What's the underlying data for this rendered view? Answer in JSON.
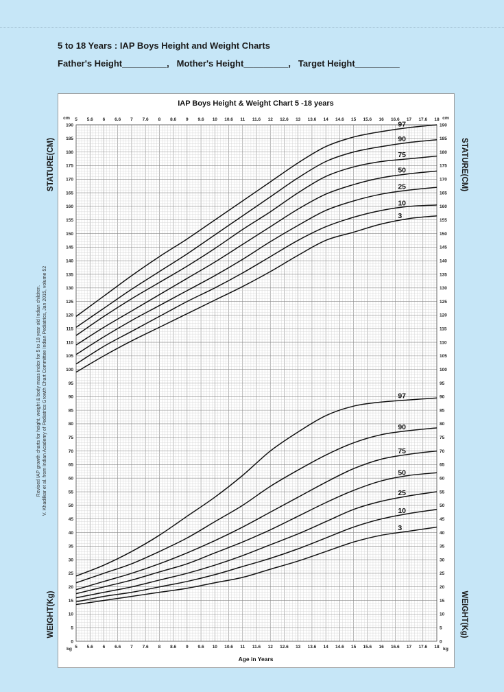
{
  "header": {
    "title": "5 to 18 Years : IAP Boys Height and Weight Charts",
    "fields": "Father's Height_________,   Mother's Height_________,   Target Height_________"
  },
  "chart_data": {
    "type": "line",
    "title": "IAP Boys Height & Weight Chart 5 -18 years",
    "xlabel": "Age in Years",
    "x_tick_labels": [
      "5",
      "5.6",
      "6",
      "6.6",
      "7",
      "7.6",
      "8",
      "8.6",
      "9",
      "9.6",
      "10",
      "10.6",
      "11",
      "11.6",
      "12",
      "12.6",
      "13",
      "13.6",
      "14",
      "14.6",
      "15",
      "15.6",
      "16",
      "16.6",
      "17",
      "17.6",
      "18"
    ],
    "xlim": [
      5,
      18
    ],
    "ylim": [
      0,
      190
    ],
    "y_tick_step": 5,
    "unit_top": "cm",
    "unit_bottom": "kg",
    "left_axis_label_top": "STATURE(CM)",
    "left_axis_label_bottom": "WEIGHT(Kg)",
    "right_axis_label_top": "STATURE(CM)",
    "right_axis_label_bottom": "WEIGHT(Kg)",
    "grid": true,
    "credit_line1": "Revised IAP growth charts for height, weight & body mass index for 5 to 18 year old Indian children.",
    "credit_line2": "V. Khadilkar et al. from Indian Academy of Pediatrics Growth Chart Committee Indian Pediatrics, Jan 2015, volume 52",
    "x": [
      5,
      6,
      7,
      8,
      9,
      10,
      11,
      12,
      13,
      14,
      15,
      16,
      17,
      18
    ],
    "height_series": [
      {
        "name": "97",
        "values": [
          119.5,
          127,
          134.5,
          141.5,
          148,
          155,
          162,
          169,
          176,
          182,
          185.5,
          187.5,
          189,
          190
        ]
      },
      {
        "name": "90",
        "values": [
          115.5,
          122.5,
          129.5,
          136,
          142.5,
          149.5,
          156.5,
          163.5,
          170.5,
          176.5,
          180,
          182,
          183.5,
          184.5
        ]
      },
      {
        "name": "75",
        "values": [
          112.5,
          119.5,
          126,
          132,
          138,
          144.5,
          151.5,
          158,
          165,
          171,
          174.5,
          176.5,
          177.5,
          178.5
        ]
      },
      {
        "name": "50",
        "values": [
          109,
          115.5,
          121.5,
          127.5,
          133.5,
          139.5,
          146,
          152.5,
          159,
          164.5,
          168,
          170.5,
          172,
          173
        ]
      },
      {
        "name": "25",
        "values": [
          105.5,
          112,
          118,
          123.5,
          129,
          134.5,
          140.5,
          147,
          153,
          158.5,
          162,
          164.5,
          166,
          167
        ]
      },
      {
        "name": "10",
        "values": [
          102,
          108.5,
          114,
          119.5,
          125,
          130,
          135.5,
          141.5,
          147.5,
          152.5,
          156,
          158.5,
          160,
          160.5
        ]
      },
      {
        "name": "3",
        "values": [
          99,
          105,
          110.5,
          115.5,
          120.5,
          125.5,
          130.5,
          136,
          142,
          147.5,
          150.5,
          153.5,
          155.5,
          156.5
        ]
      }
    ],
    "weight_series": [
      {
        "name": "97",
        "values": [
          24,
          28,
          33,
          39,
          46,
          53,
          61,
          70,
          77,
          83,
          86.5,
          88,
          88.8,
          89.5
        ]
      },
      {
        "name": "90",
        "values": [
          21.5,
          25,
          28.5,
          33,
          38,
          44,
          50,
          57,
          63,
          68.5,
          73,
          76,
          77.5,
          78.5
        ]
      },
      {
        "name": "75",
        "values": [
          19,
          22,
          25,
          28.5,
          32.5,
          37,
          42,
          47.5,
          53,
          58.5,
          63.5,
          67,
          68.8,
          70
        ]
      },
      {
        "name": "50",
        "values": [
          17.5,
          20,
          22.5,
          25.5,
          28.5,
          32.5,
          36.5,
          41,
          46,
          51,
          55.5,
          59,
          61,
          62
        ]
      },
      {
        "name": "25",
        "values": [
          16,
          18,
          20,
          22.5,
          25,
          28,
          31.5,
          35.5,
          39.5,
          44,
          48.5,
          51.5,
          53.5,
          55
        ]
      },
      {
        "name": "10",
        "values": [
          14.5,
          16.5,
          18,
          20,
          22,
          24.5,
          27.5,
          30.5,
          34,
          38,
          42,
          45,
          47,
          48.5
        ]
      },
      {
        "name": "3",
        "values": [
          13.5,
          15,
          16.5,
          18,
          19.5,
          21.5,
          23.5,
          26.5,
          29.5,
          33,
          36.5,
          39,
          40.5,
          42
        ]
      }
    ]
  }
}
